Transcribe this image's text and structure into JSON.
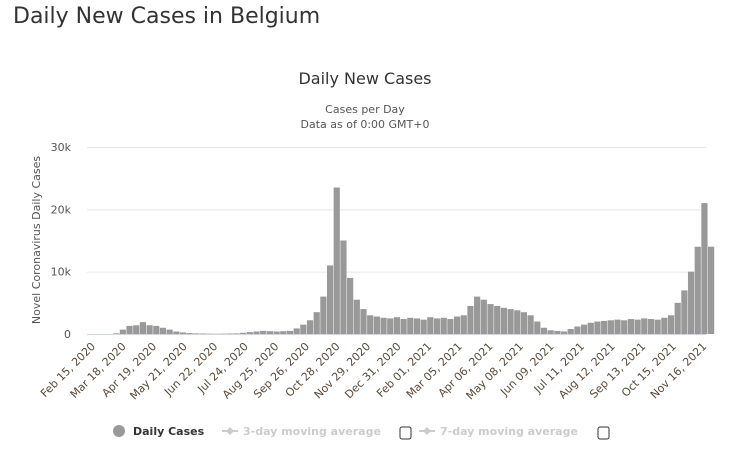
{
  "page": {
    "title": "Daily New Cases in Belgium"
  },
  "chart_data": {
    "type": "bar",
    "title": "Daily New Cases",
    "subtitle_lines": [
      "Cases per Day",
      "Data as of 0:00 GMT+0"
    ],
    "ylabel": "Novel Coronavirus Daily Cases",
    "xlabel": "",
    "ylim": [
      0,
      30000
    ],
    "y_ticks": [
      0,
      10000,
      20000,
      30000
    ],
    "y_tick_labels": [
      "0",
      "10k",
      "20k",
      "30k"
    ],
    "x_start_date": "Feb 15, 2020",
    "x_tick_interval_days": 32,
    "x_tick_labels": [
      "Feb 15, 2020",
      "Mar 18, 2020",
      "Apr 19, 2020",
      "May 21, 2020",
      "Jun 22, 2020",
      "Jul 24, 2020",
      "Aug 25, 2020",
      "Sep 26, 2020",
      "Oct 28, 2020",
      "Nov 29, 2020",
      "Dec 31, 2020",
      "Feb 01, 2021",
      "Mar 05, 2021",
      "Apr 06, 2021",
      "May 08, 2021",
      "Jun 09, 2021",
      "Jul 11, 2021",
      "Aug 12, 2021",
      "Sep 13, 2021",
      "Oct 15, 2021",
      "Nov 16, 2021"
    ],
    "grid": true,
    "bar_color": "#999999",
    "series": [
      {
        "name": "Daily Cases",
        "resolution": "weekly (approx. peak daily value per week, from Feb 15, 2020)",
        "values": [
          0,
          0,
          0,
          100,
          700,
          1300,
          1400,
          1900,
          1400,
          1300,
          1000,
          700,
          400,
          250,
          150,
          100,
          80,
          60,
          50,
          60,
          80,
          100,
          200,
          300,
          400,
          500,
          450,
          400,
          450,
          500,
          900,
          1500,
          2200,
          3500,
          6000,
          11000,
          23500,
          15000,
          9000,
          5500,
          4000,
          3000,
          2800,
          2600,
          2500,
          2700,
          2400,
          2600,
          2500,
          2300,
          2700,
          2500,
          2600,
          2400,
          2800,
          3000,
          4500,
          6000,
          5500,
          4800,
          4500,
          4200,
          4000,
          3800,
          3500,
          3000,
          2000,
          1000,
          600,
          500,
          400,
          800,
          1200,
          1500,
          1800,
          2000,
          2100,
          2200,
          2300,
          2200,
          2400,
          2300,
          2500,
          2400,
          2300,
          2600,
          3000,
          5000,
          7000,
          10000,
          14000,
          21000,
          14000
        ]
      }
    ],
    "legend": {
      "position": "bottom",
      "items": [
        {
          "label": "Daily Cases",
          "active": true
        },
        {
          "label": "3-day moving average",
          "active": false
        },
        {
          "label": "7-day moving average",
          "active": false
        }
      ]
    }
  }
}
